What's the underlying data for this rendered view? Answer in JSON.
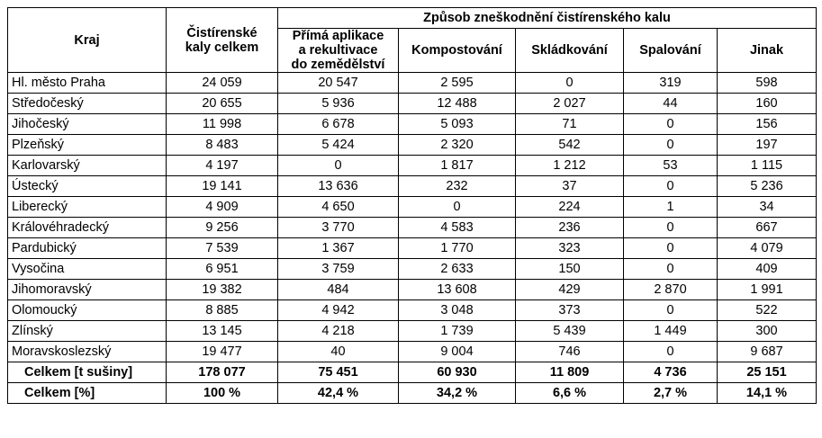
{
  "table": {
    "header": {
      "kraj": "Kraj",
      "total_label_line1": "Čistírenské",
      "total_label_line2": "kaly celkem",
      "group_label": "Způsob zneškodnění čistírenského kalu",
      "methods": [
        {
          "line1": "Přímá aplikace",
          "line2": "a rekultivace",
          "line3": "do zemědělství"
        },
        {
          "line1": "Kompostování"
        },
        {
          "line1": "Skládkování"
        },
        {
          "line1": "Spalování"
        },
        {
          "line1": "Jinak"
        }
      ]
    },
    "rows": [
      {
        "region": "Hl. město Praha",
        "values": [
          "24 059",
          "20 547",
          "2 595",
          "0",
          "319",
          "598"
        ]
      },
      {
        "region": "Středočeský",
        "values": [
          "20 655",
          "5 936",
          "12 488",
          "2 027",
          "44",
          "160"
        ]
      },
      {
        "region": "Jihočeský",
        "values": [
          "11 998",
          "6 678",
          "5 093",
          "71",
          "0",
          "156"
        ]
      },
      {
        "region": "Plzeňský",
        "values": [
          "8 483",
          "5 424",
          "2 320",
          "542",
          "0",
          "197"
        ]
      },
      {
        "region": "Karlovarský",
        "values": [
          "4 197",
          "0",
          "1 817",
          "1 212",
          "53",
          "1 115"
        ]
      },
      {
        "region": "Ústecký",
        "values": [
          "19 141",
          "13 636",
          "232",
          "37",
          "0",
          "5 236"
        ]
      },
      {
        "region": "Liberecký",
        "values": [
          "4 909",
          "4 650",
          "0",
          "224",
          "1",
          "34"
        ]
      },
      {
        "region": "Královéhradecký",
        "values": [
          "9 256",
          "3 770",
          "4 583",
          "236",
          "0",
          "667"
        ]
      },
      {
        "region": "Pardubický",
        "values": [
          "7 539",
          "1 367",
          "1 770",
          "323",
          "0",
          "4 079"
        ]
      },
      {
        "region": "Vysočina",
        "values": [
          "6 951",
          "3 759",
          "2 633",
          "150",
          "0",
          "409"
        ]
      },
      {
        "region": "Jihomoravský",
        "values": [
          "19 382",
          "484",
          "13 608",
          "429",
          "2 870",
          "1 991"
        ]
      },
      {
        "region": "Olomoucký",
        "values": [
          "8 885",
          "4 942",
          "3 048",
          "373",
          "0",
          "522"
        ]
      },
      {
        "region": "Zlínský",
        "values": [
          "13 145",
          "4 218",
          "1 739",
          "5 439",
          "1 449",
          "300"
        ]
      },
      {
        "region": "Moravskoslezský",
        "values": [
          "19 477",
          "40",
          "9 004",
          "746",
          "0",
          "9 687"
        ]
      }
    ],
    "totals": [
      {
        "label": "Celkem [t sušiny]",
        "values": [
          "178 077",
          "75 451",
          "60 930",
          "11 809",
          "4 736",
          "25 151"
        ]
      },
      {
        "label": "Celkem [%]",
        "values": [
          "100 %",
          "42,4 %",
          "34,2 %",
          "6,6 %",
          "2,7 %",
          "14,1 %"
        ]
      }
    ]
  }
}
